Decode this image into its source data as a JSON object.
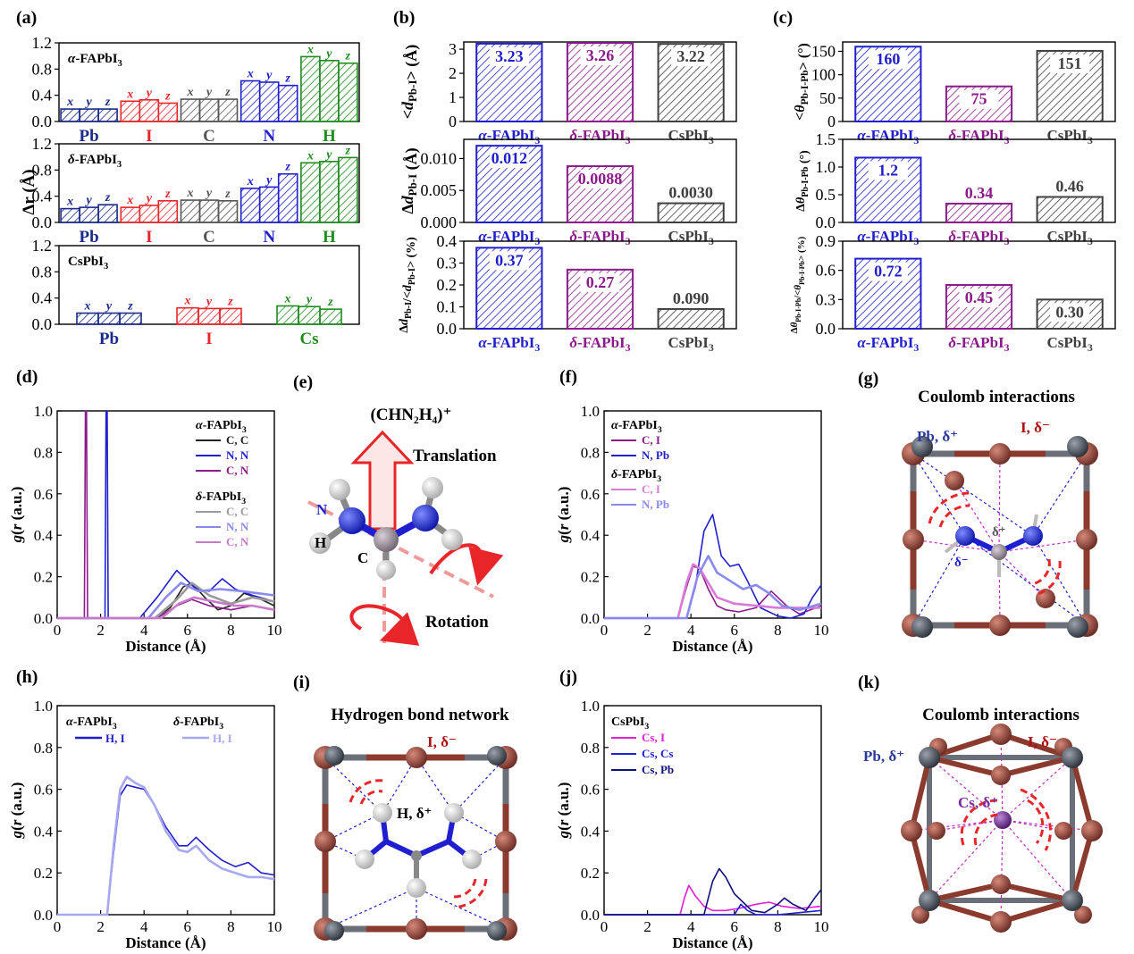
{
  "colors": {
    "alpha": "#1f1fcf",
    "delta": "#8b1a8b",
    "cs": "#404040",
    "pb": "#1a2a8a",
    "i": "#e8262a",
    "c": "#555555",
    "n": "#1f1fcf",
    "h": "#1e8c1e",
    "cs_el": "#1e8c1e",
    "pbatom": "#333a44",
    "iatom": "#8b3a2e"
  },
  "panels": {
    "a": {
      "label": "(a)",
      "ylabel": "Δr (Å)"
    },
    "b": {
      "label": "(b)"
    },
    "c": {
      "label": "(c)"
    },
    "d": {
      "label": "(d)"
    },
    "e": {
      "label": "(e)",
      "formula": "(CHN₂H₄)⁺",
      "translation": "Translation",
      "rotation": "Rotation",
      "n": "N",
      "h": "H",
      "c": "C"
    },
    "f": {
      "label": "(f)"
    },
    "g": {
      "label": "(g)",
      "title": "Coulomb interactions",
      "pb": "Pb, δ⁺",
      "i": "I, δ⁻",
      "dplus": "δ⁺",
      "dminus": "δ⁻"
    },
    "h": {
      "label": "(h)"
    },
    "i": {
      "label": "(i)",
      "title": "Hydrogen bond network",
      "i": "I, δ⁻",
      "h": "H, δ⁺"
    },
    "j": {
      "label": "(j)"
    },
    "k": {
      "label": "(k)",
      "title": "Coulomb interactions",
      "pb": "Pb, δ⁺",
      "i": "I, δ⁻",
      "cs": "Cs, δ⁺"
    }
  },
  "chart_data": [
    {
      "id": "a1",
      "type": "bar",
      "title": "α-FAPbI₃",
      "ylim": [
        0,
        1.2
      ],
      "yticks": [
        "0.0",
        "0.4",
        "0.8",
        "1.2"
      ],
      "groups": [
        {
          "name": "Pb",
          "values": [
            0.19,
            0.19,
            0.19
          ]
        },
        {
          "name": "I",
          "values": [
            0.31,
            0.33,
            0.28
          ]
        },
        {
          "name": "C",
          "values": [
            0.34,
            0.34,
            0.34
          ]
        },
        {
          "name": "N",
          "values": [
            0.62,
            0.6,
            0.55
          ]
        },
        {
          "name": "H",
          "values": [
            0.99,
            0.93,
            0.89
          ]
        }
      ],
      "bar_labels": [
        "x",
        "y",
        "z"
      ]
    },
    {
      "id": "a2",
      "type": "bar",
      "title": "δ-FAPbI₃",
      "ylim": [
        0,
        1.2
      ],
      "yticks": [
        "0.0",
        "0.4",
        "0.8",
        "1.2"
      ],
      "groups": [
        {
          "name": "Pb",
          "values": [
            0.21,
            0.23,
            0.27
          ]
        },
        {
          "name": "I",
          "values": [
            0.23,
            0.26,
            0.33
          ]
        },
        {
          "name": "C",
          "values": [
            0.34,
            0.34,
            0.33
          ]
        },
        {
          "name": "N",
          "values": [
            0.52,
            0.54,
            0.74
          ]
        },
        {
          "name": "H",
          "values": [
            0.91,
            0.93,
            0.99
          ]
        }
      ],
      "bar_labels": [
        "x",
        "y",
        "z"
      ]
    },
    {
      "id": "a3",
      "type": "bar",
      "title": "CsPbI₃",
      "ylim": [
        0,
        1.2
      ],
      "yticks": [
        "0.0",
        "0.4",
        "0.8",
        "1.2"
      ],
      "groups": [
        {
          "name": "Pb",
          "values": [
            0.17,
            0.17,
            0.17
          ]
        },
        {
          "name": "I",
          "values": [
            0.25,
            0.24,
            0.24
          ]
        },
        {
          "name": "Cs",
          "values": [
            0.28,
            0.27,
            0.23
          ]
        }
      ],
      "bar_labels": [
        "x",
        "y",
        "z"
      ]
    },
    {
      "id": "b1",
      "type": "bar",
      "ylabel": "<d_Pb-I> (Å)",
      "ylim": [
        0,
        3.3
      ],
      "yticks": [
        "0",
        "1",
        "2",
        "3"
      ],
      "categories": [
        "α-FAPbI₃",
        "δ-FAPbI₃",
        "CsPbI₃"
      ],
      "values": [
        3.23,
        3.26,
        3.22
      ],
      "labels": [
        "3.23",
        "3.26",
        "3.22"
      ]
    },
    {
      "id": "b2",
      "type": "bar",
      "ylabel": "Δd_Pb-I (Å)",
      "ylim": [
        0,
        0.013
      ],
      "yticks": [
        "0.000",
        "0.005",
        "0.010"
      ],
      "categories": [
        "α-FAPbI₃",
        "δ-FAPbI₃",
        "CsPbI₃"
      ],
      "values": [
        0.012,
        0.0088,
        0.003
      ],
      "labels": [
        "0.012",
        "0.0088",
        "0.0030"
      ]
    },
    {
      "id": "b3",
      "type": "bar",
      "ylabel": "Δd_Pb-I/<d_Pb-I> (%)",
      "ylim": [
        0,
        0.4
      ],
      "yticks": [
        "0.0",
        "0.1",
        "0.2",
        "0.3",
        "0.4"
      ],
      "categories": [
        "α-FAPbI₃",
        "δ-FAPbI₃",
        "CsPbI₃"
      ],
      "values": [
        0.37,
        0.27,
        0.09
      ],
      "labels": [
        "0.37",
        "0.27",
        "0.090"
      ]
    },
    {
      "id": "c1",
      "type": "bar",
      "ylabel": "<θ_Pb-I-Pb> (°)",
      "ylim": [
        0,
        170
      ],
      "yticks": [
        "0",
        "50",
        "100",
        "150"
      ],
      "categories": [
        "α-FAPbI₃",
        "δ-FAPbI₃",
        "CsPbI₃"
      ],
      "values": [
        160,
        75,
        151
      ],
      "labels": [
        "160",
        "75",
        "151"
      ]
    },
    {
      "id": "c2",
      "type": "bar",
      "ylabel": "Δθ_Pb-I-Pb (°)",
      "ylim": [
        0,
        1.5
      ],
      "yticks": [
        "0.0",
        "0.5",
        "1.0",
        "1.5"
      ],
      "categories": [
        "α-FAPbI₃",
        "δ-FAPbI₃",
        "CsPbI₃"
      ],
      "values": [
        1.17,
        0.34,
        0.46
      ],
      "labels": [
        "1.2",
        "0.34",
        "0.46"
      ]
    },
    {
      "id": "c3",
      "type": "bar",
      "ylabel": "Δθ_Pb-I-Pb/<θ_Pb-I-Pb> (%)",
      "ylim": [
        0,
        0.9
      ],
      "yticks": [
        "0.0",
        "0.3",
        "0.6",
        "0.9"
      ],
      "categories": [
        "α-FAPbI₃",
        "δ-FAPbI₃",
        "CsPbI₃"
      ],
      "values": [
        0.72,
        0.45,
        0.3
      ],
      "labels": [
        "0.72",
        "0.45",
        "0.30"
      ]
    },
    {
      "id": "d",
      "type": "line",
      "xlabel": "Distance (Å)",
      "ylabel": "g(r) (a.u.)",
      "xlim": [
        0,
        10
      ],
      "ylim": [
        0,
        1.0
      ],
      "xticks": [
        "0",
        "2",
        "4",
        "6",
        "8",
        "10"
      ],
      "yticks": [
        "0.0",
        "0.2",
        "0.4",
        "0.6",
        "0.8",
        "1.0"
      ],
      "legend_groups": [
        "α-FAPbI₃",
        "δ-FAPbI₃"
      ],
      "series": [
        {
          "name": "C, C",
          "group": 0,
          "color": "#222222",
          "x": [
            0,
            4.5,
            5.2,
            5.8,
            6.2,
            6.8,
            7.4,
            8.0,
            8.6,
            9.2,
            10
          ],
          "y": [
            0,
            0,
            0.05,
            0.15,
            0.17,
            0.1,
            0.04,
            0.06,
            0.12,
            0.1,
            0.06
          ]
        },
        {
          "name": "N, N",
          "group": 0,
          "color": "#1f1fcf",
          "x": [
            0,
            2.2,
            2.25,
            2.3,
            2.35,
            2.4,
            3.8,
            4.6,
            5.5,
            6.4,
            7.0,
            7.6,
            8.2,
            9.0,
            10
          ],
          "y": [
            0,
            0,
            1.0,
            1.0,
            0,
            0,
            0,
            0.1,
            0.23,
            0.14,
            0.13,
            0.19,
            0.14,
            0.11,
            0.08
          ]
        },
        {
          "name": "C, N",
          "group": 0,
          "color": "#8b1a8b",
          "x": [
            0,
            1.25,
            1.3,
            1.35,
            1.4,
            1.45,
            4.6,
            5.5,
            6.2,
            7.0,
            8.0,
            9.0,
            10
          ],
          "y": [
            0,
            0,
            1.0,
            1.0,
            0,
            0,
            0,
            0.06,
            0.09,
            0.06,
            0.04,
            0.06,
            0.04
          ]
        },
        {
          "name": "C, C",
          "group": 1,
          "color": "#9a9a9a",
          "x": [
            0,
            4.5,
            5.5,
            6.2,
            7.0,
            8.0,
            9.0,
            10
          ],
          "y": [
            0,
            0,
            0.09,
            0.17,
            0.11,
            0.07,
            0.1,
            0.08
          ]
        },
        {
          "name": "N, N",
          "group": 1,
          "color": "#8a8aee",
          "x": [
            0,
            4.2,
            5.0,
            5.7,
            6.5,
            7.5,
            8.5,
            10
          ],
          "y": [
            0,
            0,
            0.1,
            0.17,
            0.13,
            0.14,
            0.13,
            0.11
          ]
        },
        {
          "name": "C, N",
          "group": 1,
          "color": "#c87ac8",
          "x": [
            0,
            4.8,
            5.6,
            6.3,
            7.2,
            8.2,
            9.0,
            10
          ],
          "y": [
            0,
            0,
            0.07,
            0.1,
            0.08,
            0.06,
            0.06,
            0.04
          ]
        }
      ]
    },
    {
      "id": "f",
      "type": "line",
      "xlabel": "Distance (Å)",
      "ylabel": "g(r) (a.u.)",
      "xlim": [
        0,
        10
      ],
      "ylim": [
        0,
        1.0
      ],
      "xticks": [
        "0",
        "2",
        "4",
        "6",
        "8",
        "10"
      ],
      "yticks": [
        "0.0",
        "0.2",
        "0.4",
        "0.6",
        "0.8",
        "1.0"
      ],
      "legend_groups": [
        "α-FAPbI₃",
        "δ-FAPbI₃"
      ],
      "series": [
        {
          "name": "C, I",
          "group": 0,
          "color": "#8b1a8b",
          "x": [
            0,
            3.4,
            3.8,
            4.1,
            4.4,
            4.8,
            5.2,
            5.6,
            6.2,
            7.0,
            7.7,
            8.4,
            9.0,
            10
          ],
          "y": [
            0,
            0,
            0.15,
            0.25,
            0.24,
            0.14,
            0.06,
            0.04,
            0.03,
            0.05,
            0.13,
            0.06,
            0.02,
            0.06
          ]
        },
        {
          "name": "N, Pb",
          "group": 0,
          "color": "#1f1fcf",
          "x": [
            0,
            3.8,
            4.2,
            4.6,
            5.0,
            5.4,
            5.8,
            6.2,
            6.6,
            7.2,
            8.0,
            8.6,
            9.2,
            9.6,
            10
          ],
          "y": [
            0,
            0,
            0.15,
            0.42,
            0.5,
            0.3,
            0.25,
            0.26,
            0.18,
            0.05,
            0.01,
            0.0,
            0.02,
            0.1,
            0.16
          ]
        },
        {
          "name": "C, I",
          "group": 1,
          "color": "#d87ad8",
          "x": [
            0,
            3.4,
            3.8,
            4.1,
            4.4,
            4.8,
            5.2,
            6.0,
            7.0,
            8.0,
            9.0,
            10
          ],
          "y": [
            0,
            0,
            0.17,
            0.26,
            0.24,
            0.17,
            0.1,
            0.07,
            0.06,
            0.05,
            0.05,
            0.05
          ]
        },
        {
          "name": "N, Pb",
          "group": 1,
          "color": "#8a8aee",
          "x": [
            0,
            3.8,
            4.3,
            4.8,
            5.2,
            5.8,
            6.4,
            7.0,
            7.6,
            8.2,
            9.0,
            10
          ],
          "y": [
            0,
            0,
            0.2,
            0.3,
            0.22,
            0.18,
            0.14,
            0.16,
            0.12,
            0.06,
            0.04,
            0.07
          ]
        }
      ]
    },
    {
      "id": "h",
      "type": "line",
      "xlabel": "Distance (Å)",
      "ylabel": "g(r) (a.u.)",
      "xlim": [
        0,
        10
      ],
      "ylim": [
        0,
        1.0
      ],
      "xticks": [
        "0",
        "2",
        "4",
        "6",
        "8",
        "10"
      ],
      "yticks": [
        "0.0",
        "0.2",
        "0.4",
        "0.6",
        "0.8",
        "1.0"
      ],
      "legend_groups": [
        "α-FAPbI₃",
        "δ-FAPbI₃"
      ],
      "series": [
        {
          "name": "H, I",
          "group": 0,
          "color": "#1f1fcf",
          "x": [
            0,
            2.3,
            2.6,
            2.9,
            3.2,
            3.6,
            4.0,
            4.5,
            5.0,
            5.6,
            6.0,
            6.4,
            7.0,
            7.6,
            8.2,
            8.8,
            9.4,
            10
          ],
          "y": [
            0,
            0,
            0.3,
            0.57,
            0.62,
            0.61,
            0.6,
            0.52,
            0.42,
            0.33,
            0.33,
            0.37,
            0.31,
            0.26,
            0.23,
            0.25,
            0.2,
            0.19
          ]
        },
        {
          "name": "H, I",
          "group": 1,
          "color": "#a8a8f0",
          "x": [
            0,
            2.3,
            2.6,
            2.9,
            3.2,
            3.6,
            4.0,
            4.5,
            5.0,
            5.6,
            6.0,
            6.4,
            7.0,
            7.6,
            8.2,
            8.8,
            9.4,
            10
          ],
          "y": [
            0,
            0,
            0.33,
            0.6,
            0.66,
            0.63,
            0.61,
            0.52,
            0.4,
            0.31,
            0.3,
            0.33,
            0.26,
            0.22,
            0.2,
            0.18,
            0.18,
            0.17
          ]
        }
      ]
    },
    {
      "id": "j",
      "type": "line",
      "title": "CsPbI₃",
      "xlabel": "Distance (Å)",
      "ylabel": "g(r) (a.u.)",
      "xlim": [
        0,
        10
      ],
      "ylim": [
        0,
        1.0
      ],
      "xticks": [
        "0",
        "2",
        "4",
        "6",
        "8",
        "10"
      ],
      "yticks": [
        "0.0",
        "0.2",
        "0.4",
        "0.6",
        "0.8",
        "1.0"
      ],
      "series": [
        {
          "name": "Cs, I",
          "color": "#e21ed8",
          "x": [
            0,
            3.5,
            3.7,
            3.9,
            4.2,
            4.6,
            5.0,
            5.6,
            6.2,
            7.0,
            7.6,
            8.2,
            9.0,
            10
          ],
          "y": [
            0,
            0,
            0.08,
            0.14,
            0.09,
            0.04,
            0.02,
            0.02,
            0.03,
            0.05,
            0.06,
            0.04,
            0.03,
            0.04
          ]
        },
        {
          "name": "Cs, Cs",
          "color": "#1f1fcf",
          "x": [
            0,
            6.0,
            6.3,
            6.6,
            7.0,
            8.0,
            9.0,
            10
          ],
          "y": [
            0,
            0,
            0.05,
            0.02,
            0.0,
            0.0,
            0.01,
            0.02
          ]
        },
        {
          "name": "Cs, Pb",
          "color": "#10107a",
          "x": [
            0,
            4.6,
            5.0,
            5.3,
            5.6,
            6.0,
            6.4,
            6.8,
            7.4,
            8.0,
            8.3,
            8.7,
            9.3,
            9.7,
            10
          ],
          "y": [
            0,
            0,
            0.16,
            0.22,
            0.18,
            0.1,
            0.06,
            0.02,
            0.01,
            0.05,
            0.08,
            0.05,
            0.02,
            0.08,
            0.12
          ]
        }
      ]
    }
  ]
}
